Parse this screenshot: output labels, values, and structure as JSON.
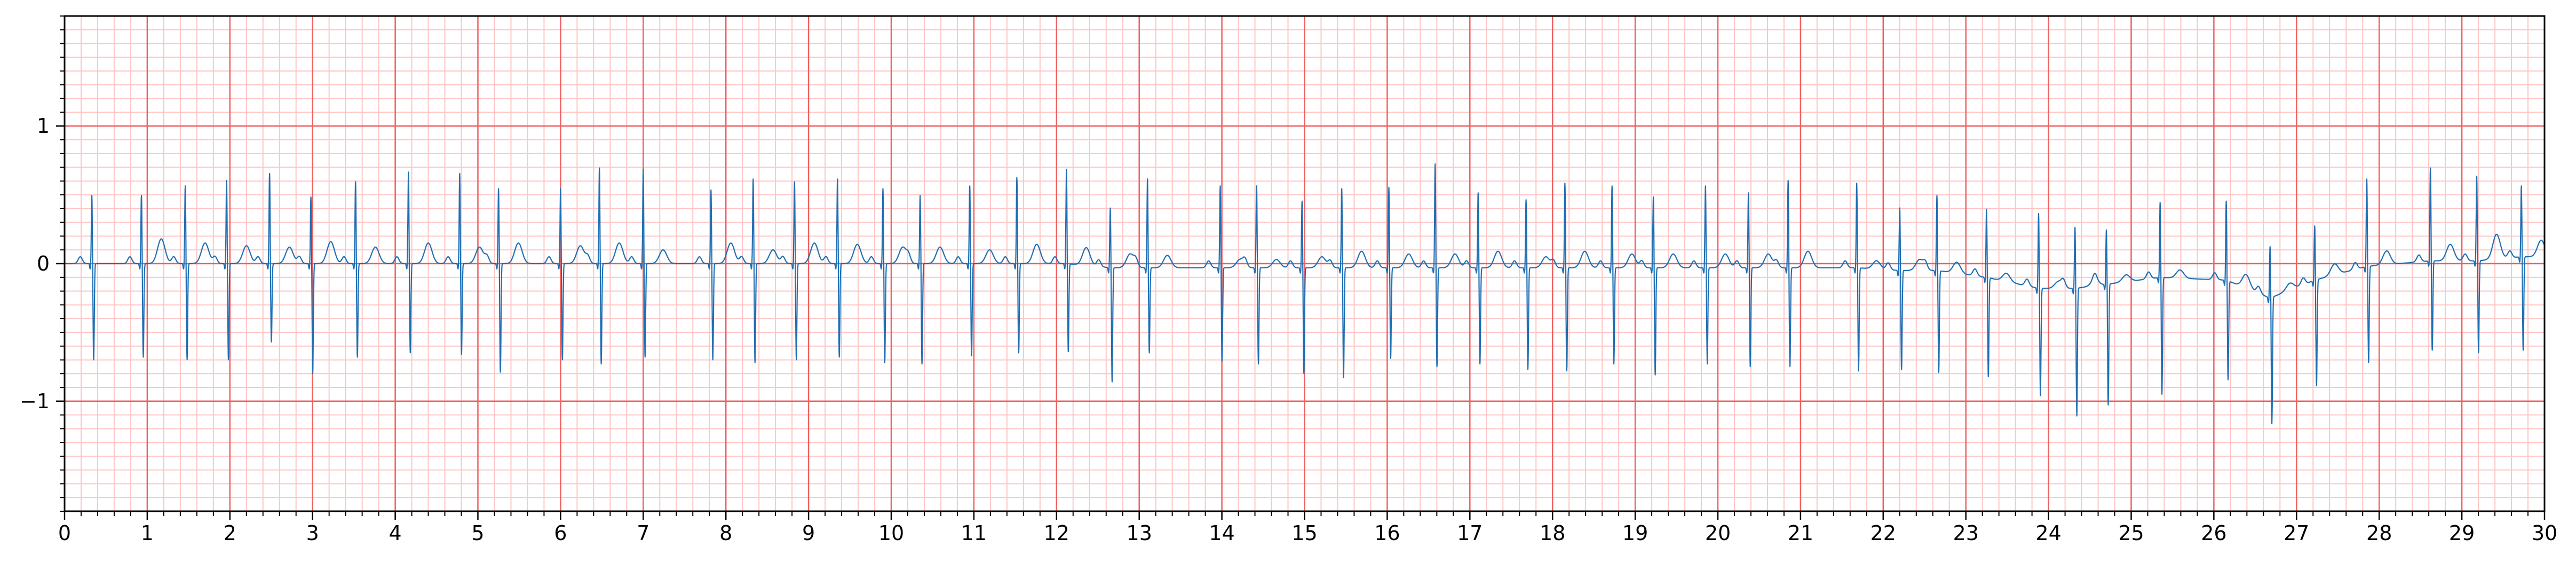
{
  "chart_data": {
    "type": "line",
    "title": "",
    "xlabel": "",
    "ylabel": "",
    "xlim": [
      0,
      30
    ],
    "ylim": [
      -1.8,
      1.8
    ],
    "x_ticks": [
      0,
      1,
      2,
      3,
      4,
      5,
      6,
      7,
      8,
      9,
      10,
      11,
      12,
      13,
      14,
      15,
      16,
      17,
      18,
      19,
      20,
      21,
      22,
      23,
      24,
      25,
      26,
      27,
      28,
      29,
      30
    ],
    "x_tick_labels": [
      "0",
      "1",
      "2",
      "3",
      "4",
      "5",
      "6",
      "7",
      "8",
      "9",
      "10",
      "11",
      "12",
      "13",
      "14",
      "15",
      "16",
      "17",
      "18",
      "19",
      "20",
      "21",
      "22",
      "23",
      "24",
      "25",
      "26",
      "27",
      "28",
      "29",
      "30"
    ],
    "y_ticks": [
      -1,
      0,
      1
    ],
    "y_tick_labels": [
      "−1",
      "0",
      "1"
    ],
    "grid": {
      "major": true,
      "minor": true,
      "major_color": "#f06060",
      "minor_color": "#ffc4c4",
      "x_major_step": 1,
      "x_minor_step": 0.2,
      "y_major_step": 1,
      "y_minor_step": 0.1
    },
    "legend": "none",
    "series": [
      {
        "color": "#1f6fb4",
        "beats": [
          {
            "t": 0.33,
            "r": 0.5,
            "s": -0.7,
            "tw": 0.0,
            "base": 0.0
          },
          {
            "t": 0.93,
            "r": 0.5,
            "s": -0.68,
            "tw": 0.18,
            "base": 0.0
          },
          {
            "t": 1.46,
            "r": 0.57,
            "s": -0.7,
            "tw": 0.15,
            "base": 0.0
          },
          {
            "t": 1.96,
            "r": 0.61,
            "s": -0.7,
            "tw": 0.13,
            "base": 0.0
          },
          {
            "t": 2.48,
            "r": 0.66,
            "s": -0.57,
            "tw": 0.12,
            "base": 0.0
          },
          {
            "t": 2.98,
            "r": 0.49,
            "s": -0.8,
            "tw": 0.16,
            "base": 0.0
          },
          {
            "t": 3.52,
            "r": 0.6,
            "s": -0.68,
            "tw": 0.12,
            "base": 0.0
          },
          {
            "t": 4.16,
            "r": 0.67,
            "s": -0.65,
            "tw": 0.15,
            "base": 0.0
          },
          {
            "t": 4.78,
            "r": 0.66,
            "s": -0.66,
            "tw": 0.12,
            "base": 0.0
          },
          {
            "t": 5.25,
            "r": 0.55,
            "s": -0.79,
            "tw": 0.15,
            "base": 0.0
          },
          {
            "t": 6.0,
            "r": 0.55,
            "s": -0.7,
            "tw": 0.13,
            "base": 0.0
          },
          {
            "t": 6.47,
            "r": 0.7,
            "s": -0.73,
            "tw": 0.15,
            "base": 0.0
          },
          {
            "t": 7.0,
            "r": 0.69,
            "s": -0.68,
            "tw": 0.1,
            "base": 0.0
          },
          {
            "t": 7.82,
            "r": 0.54,
            "s": -0.7,
            "tw": 0.15,
            "base": 0.0
          },
          {
            "t": 8.33,
            "r": 0.62,
            "s": -0.72,
            "tw": 0.1,
            "base": 0.0
          },
          {
            "t": 8.83,
            "r": 0.6,
            "s": -0.7,
            "tw": 0.15,
            "base": 0.0
          },
          {
            "t": 9.35,
            "r": 0.62,
            "s": -0.68,
            "tw": 0.14,
            "base": 0.0
          },
          {
            "t": 9.9,
            "r": 0.55,
            "s": -0.72,
            "tw": 0.12,
            "base": 0.0
          },
          {
            "t": 10.35,
            "r": 0.5,
            "s": -0.73,
            "tw": 0.12,
            "base": 0.0
          },
          {
            "t": 10.95,
            "r": 0.57,
            "s": -0.67,
            "tw": 0.1,
            "base": 0.0
          },
          {
            "t": 11.52,
            "r": 0.63,
            "s": -0.65,
            "tw": 0.14,
            "base": 0.0
          },
          {
            "t": 12.12,
            "r": 0.69,
            "s": -0.64,
            "tw": 0.13,
            "base": 0.0
          },
          {
            "t": 12.65,
            "r": 0.44,
            "s": -0.83,
            "tw": 0.1,
            "base": -0.03
          },
          {
            "t": 13.1,
            "r": 0.65,
            "s": -0.62,
            "tw": 0.09,
            "base": -0.03
          },
          {
            "t": 13.98,
            "r": 0.6,
            "s": -0.68,
            "tw": 0.06,
            "base": -0.03
          },
          {
            "t": 14.42,
            "r": 0.6,
            "s": -0.7,
            "tw": 0.06,
            "base": -0.03
          },
          {
            "t": 14.97,
            "r": 0.49,
            "s": -0.77,
            "tw": 0.08,
            "base": -0.03
          },
          {
            "t": 15.45,
            "r": 0.58,
            "s": -0.8,
            "tw": 0.12,
            "base": -0.03
          },
          {
            "t": 16.02,
            "r": 0.59,
            "s": -0.66,
            "tw": 0.1,
            "base": -0.03
          },
          {
            "t": 16.58,
            "r": 0.76,
            "s": -0.72,
            "tw": 0.1,
            "base": -0.03
          },
          {
            "t": 17.1,
            "r": 0.55,
            "s": -0.7,
            "tw": 0.12,
            "base": -0.03
          },
          {
            "t": 17.68,
            "r": 0.5,
            "s": -0.74,
            "tw": 0.08,
            "base": -0.03
          },
          {
            "t": 18.15,
            "r": 0.62,
            "s": -0.75,
            "tw": 0.12,
            "base": -0.03
          },
          {
            "t": 18.72,
            "r": 0.6,
            "s": -0.7,
            "tw": 0.1,
            "base": -0.03
          },
          {
            "t": 19.22,
            "r": 0.52,
            "s": -0.78,
            "tw": 0.1,
            "base": -0.03
          },
          {
            "t": 19.85,
            "r": 0.6,
            "s": -0.7,
            "tw": 0.1,
            "base": -0.03
          },
          {
            "t": 20.37,
            "r": 0.55,
            "s": -0.72,
            "tw": 0.1,
            "base": -0.03
          },
          {
            "t": 20.85,
            "r": 0.64,
            "s": -0.72,
            "tw": 0.12,
            "base": -0.03
          },
          {
            "t": 21.68,
            "r": 0.62,
            "s": -0.75,
            "tw": 0.06,
            "base": -0.03
          },
          {
            "t": 22.2,
            "r": 0.46,
            "s": -0.72,
            "tw": 0.08,
            "base": -0.05
          },
          {
            "t": 22.65,
            "r": 0.55,
            "s": -0.74,
            "tw": 0.08,
            "base": -0.05
          },
          {
            "t": 23.25,
            "r": 0.5,
            "s": -0.72,
            "tw": 0.06,
            "base": -0.1
          },
          {
            "t": 23.88,
            "r": 0.55,
            "s": -0.78,
            "tw": 0.05,
            "base": -0.18
          },
          {
            "t": 24.32,
            "r": 0.45,
            "s": -0.93,
            "tw": 0.04,
            "base": -0.18
          },
          {
            "t": 24.7,
            "r": 0.4,
            "s": -0.88,
            "tw": 0.05,
            "base": -0.15
          },
          {
            "t": 25.35,
            "r": 0.55,
            "s": -0.85,
            "tw": 0.06,
            "base": -0.1
          },
          {
            "t": 26.15,
            "r": 0.58,
            "s": -0.72,
            "tw": 0.1,
            "base": -0.12
          },
          {
            "t": 26.68,
            "r": 0.38,
            "s": -0.92,
            "tw": 0.05,
            "base": -0.25
          },
          {
            "t": 27.22,
            "r": 0.4,
            "s": -0.77,
            "tw": 0.08,
            "base": -0.12
          },
          {
            "t": 27.85,
            "r": 0.64,
            "s": -0.7,
            "tw": 0.1,
            "base": -0.02
          },
          {
            "t": 28.62,
            "r": 0.68,
            "s": -0.65,
            "tw": 0.12,
            "base": 0.02
          },
          {
            "t": 29.18,
            "r": 0.62,
            "s": -0.67,
            "tw": 0.18,
            "base": 0.02
          },
          {
            "t": 29.72,
            "r": 0.52,
            "s": -0.68,
            "tw": 0.12,
            "base": 0.05
          }
        ]
      }
    ]
  }
}
